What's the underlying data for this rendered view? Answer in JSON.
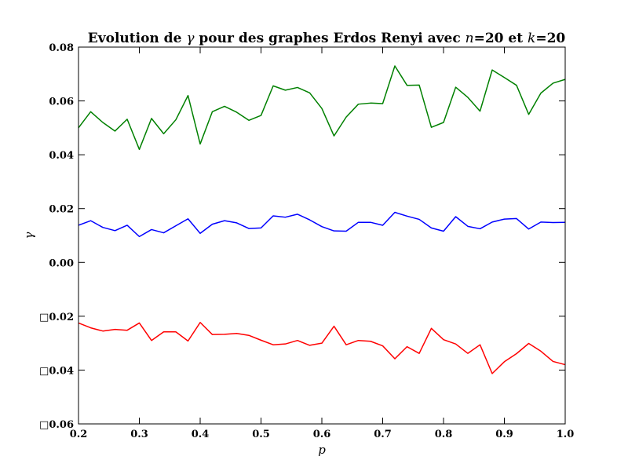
{
  "chart_data": {
    "type": "line",
    "title_parts": {
      "prefix": "Evolution de ",
      "symbol": "γ",
      "middle": " pour des graphes Erdos Renyi avec ",
      "n_label": "n",
      "eq1": "=20",
      "and": " et ",
      "k_label": "k",
      "eq2": "=20"
    },
    "xlabel": "p",
    "ylabel": "γ",
    "xlim": [
      0.2,
      1.0
    ],
    "ylim": [
      -0.06,
      0.08
    ],
    "xticks": [
      0.2,
      0.3,
      0.4,
      0.5,
      0.6,
      0.7,
      0.8,
      0.9,
      1.0
    ],
    "yticks": [
      -0.06,
      -0.04,
      -0.02,
      0.0,
      0.02,
      0.04,
      0.06,
      0.08
    ],
    "ytick_labels": [
      "□0.06",
      "□0.04",
      "□0.02",
      "0.00",
      "0.02",
      "0.04",
      "0.06",
      "0.08"
    ],
    "grid": false,
    "x": [
      0.2,
      0.22,
      0.24,
      0.26,
      0.28,
      0.3,
      0.32,
      0.34,
      0.36,
      0.38,
      0.4,
      0.42,
      0.44,
      0.46,
      0.48,
      0.5,
      0.52,
      0.54,
      0.56,
      0.58,
      0.6,
      0.62,
      0.64,
      0.66,
      0.68,
      0.7,
      0.72,
      0.74,
      0.76,
      0.78,
      0.8,
      0.82,
      0.84,
      0.86,
      0.88,
      0.9,
      0.92,
      0.94,
      0.96,
      0.98,
      1.0
    ],
    "series": [
      {
        "color": "#008000",
        "values": [
          0.05,
          0.056,
          0.052,
          0.0488,
          0.0532,
          0.042,
          0.0535,
          0.0478,
          0.053,
          0.062,
          0.044,
          0.056,
          0.058,
          0.0558,
          0.0528,
          0.0546,
          0.0656,
          0.064,
          0.065,
          0.063,
          0.0572,
          0.047,
          0.054,
          0.0588,
          0.0592,
          0.059,
          0.073,
          0.0658,
          0.0659,
          0.0502,
          0.052,
          0.0651,
          0.0613,
          0.0562,
          0.0715,
          0.0687,
          0.0658,
          0.055,
          0.0629,
          0.0666,
          0.068
        ]
      },
      {
        "color": "#0000ff",
        "values": [
          0.0138,
          0.0155,
          0.013,
          0.0118,
          0.0138,
          0.0096,
          0.0122,
          0.011,
          0.0136,
          0.0162,
          0.0108,
          0.0142,
          0.0155,
          0.0147,
          0.0126,
          0.0128,
          0.0173,
          0.0168,
          0.0179,
          0.0158,
          0.0133,
          0.0117,
          0.0116,
          0.0149,
          0.0149,
          0.0138,
          0.0186,
          0.0172,
          0.016,
          0.0128,
          0.0116,
          0.017,
          0.0134,
          0.0125,
          0.015,
          0.0161,
          0.0163,
          0.0124,
          0.015,
          0.0148,
          0.0149
        ]
      },
      {
        "color": "#ff0000",
        "values": [
          -0.0225,
          -0.0243,
          -0.0255,
          -0.0249,
          -0.0252,
          -0.0225,
          -0.029,
          -0.0258,
          -0.0258,
          -0.0292,
          -0.0223,
          -0.0268,
          -0.0267,
          -0.0264,
          -0.0271,
          -0.0289,
          -0.0306,
          -0.0303,
          -0.029,
          -0.0308,
          -0.03,
          -0.0237,
          -0.0306,
          -0.029,
          -0.0293,
          -0.031,
          -0.0358,
          -0.0313,
          -0.0338,
          -0.0245,
          -0.0287,
          -0.0303,
          -0.0338,
          -0.0306,
          -0.0413,
          -0.0369,
          -0.0339,
          -0.0301,
          -0.033,
          -0.0368,
          -0.038
        ]
      }
    ]
  }
}
